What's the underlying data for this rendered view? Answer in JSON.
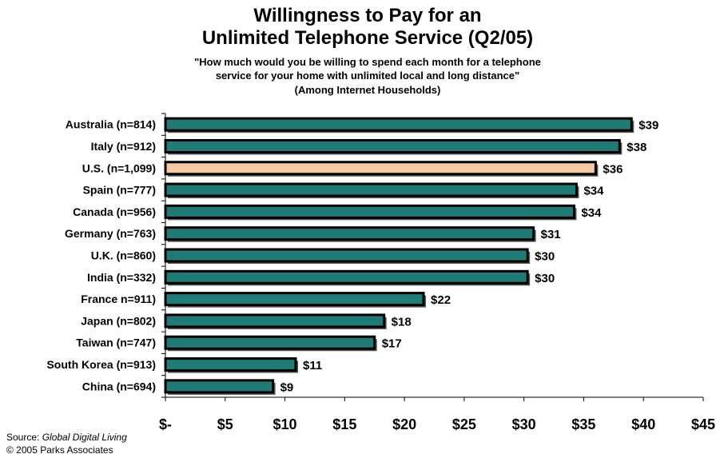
{
  "chart_data": {
    "type": "bar",
    "orientation": "horizontal",
    "title_line1": "Willingness to Pay for an",
    "title_line2": "Unlimited Telephone Service (Q2/05)",
    "subtitle_line1": "\"How much would you be willing to spend each month for a telephone",
    "subtitle_line2": "service for your home with unlimited local and long distance\"",
    "subtitle_line3": "(Among Internet Households)",
    "categories": [
      "Australia (n=814)",
      "Italy (n=912)",
      "U.S. (n=1,099)",
      "Spain (n=777)",
      "Canada (n=956)",
      "Germany (n=763)",
      "U.K. (n=860)",
      "India (n=332)",
      "France n=911)",
      "Japan (n=802)",
      "Taiwan (n=747)",
      "South Korea (n=913)",
      "China (n=694)"
    ],
    "values": [
      39,
      38,
      36,
      34.4,
      34.2,
      30.8,
      30.3,
      30.3,
      21.6,
      18.3,
      17.5,
      10.9,
      9
    ],
    "data_labels": [
      "$39",
      "$38",
      "$36",
      "$34",
      "$34",
      "$31",
      "$30",
      "$30",
      "$22",
      "$18",
      "$17",
      "$11",
      "$9"
    ],
    "xlim": [
      0,
      45
    ],
    "x_ticks": [
      0,
      5,
      10,
      15,
      20,
      25,
      30,
      35,
      40,
      45
    ],
    "x_tick_labels": [
      "$-",
      "$5",
      "$10",
      "$15",
      "$20",
      "$25",
      "$30",
      "$35",
      "$40",
      "$45"
    ],
    "highlight_index": 2,
    "colors": {
      "bar": "#1f7b76",
      "highlight": "#f4c9a3",
      "outline": "#000000"
    },
    "grid": false,
    "legend": "none"
  },
  "source_label": "Source: ",
  "source_name": "Global Digital Living",
  "copyright": "© 2005 Parks Associates"
}
